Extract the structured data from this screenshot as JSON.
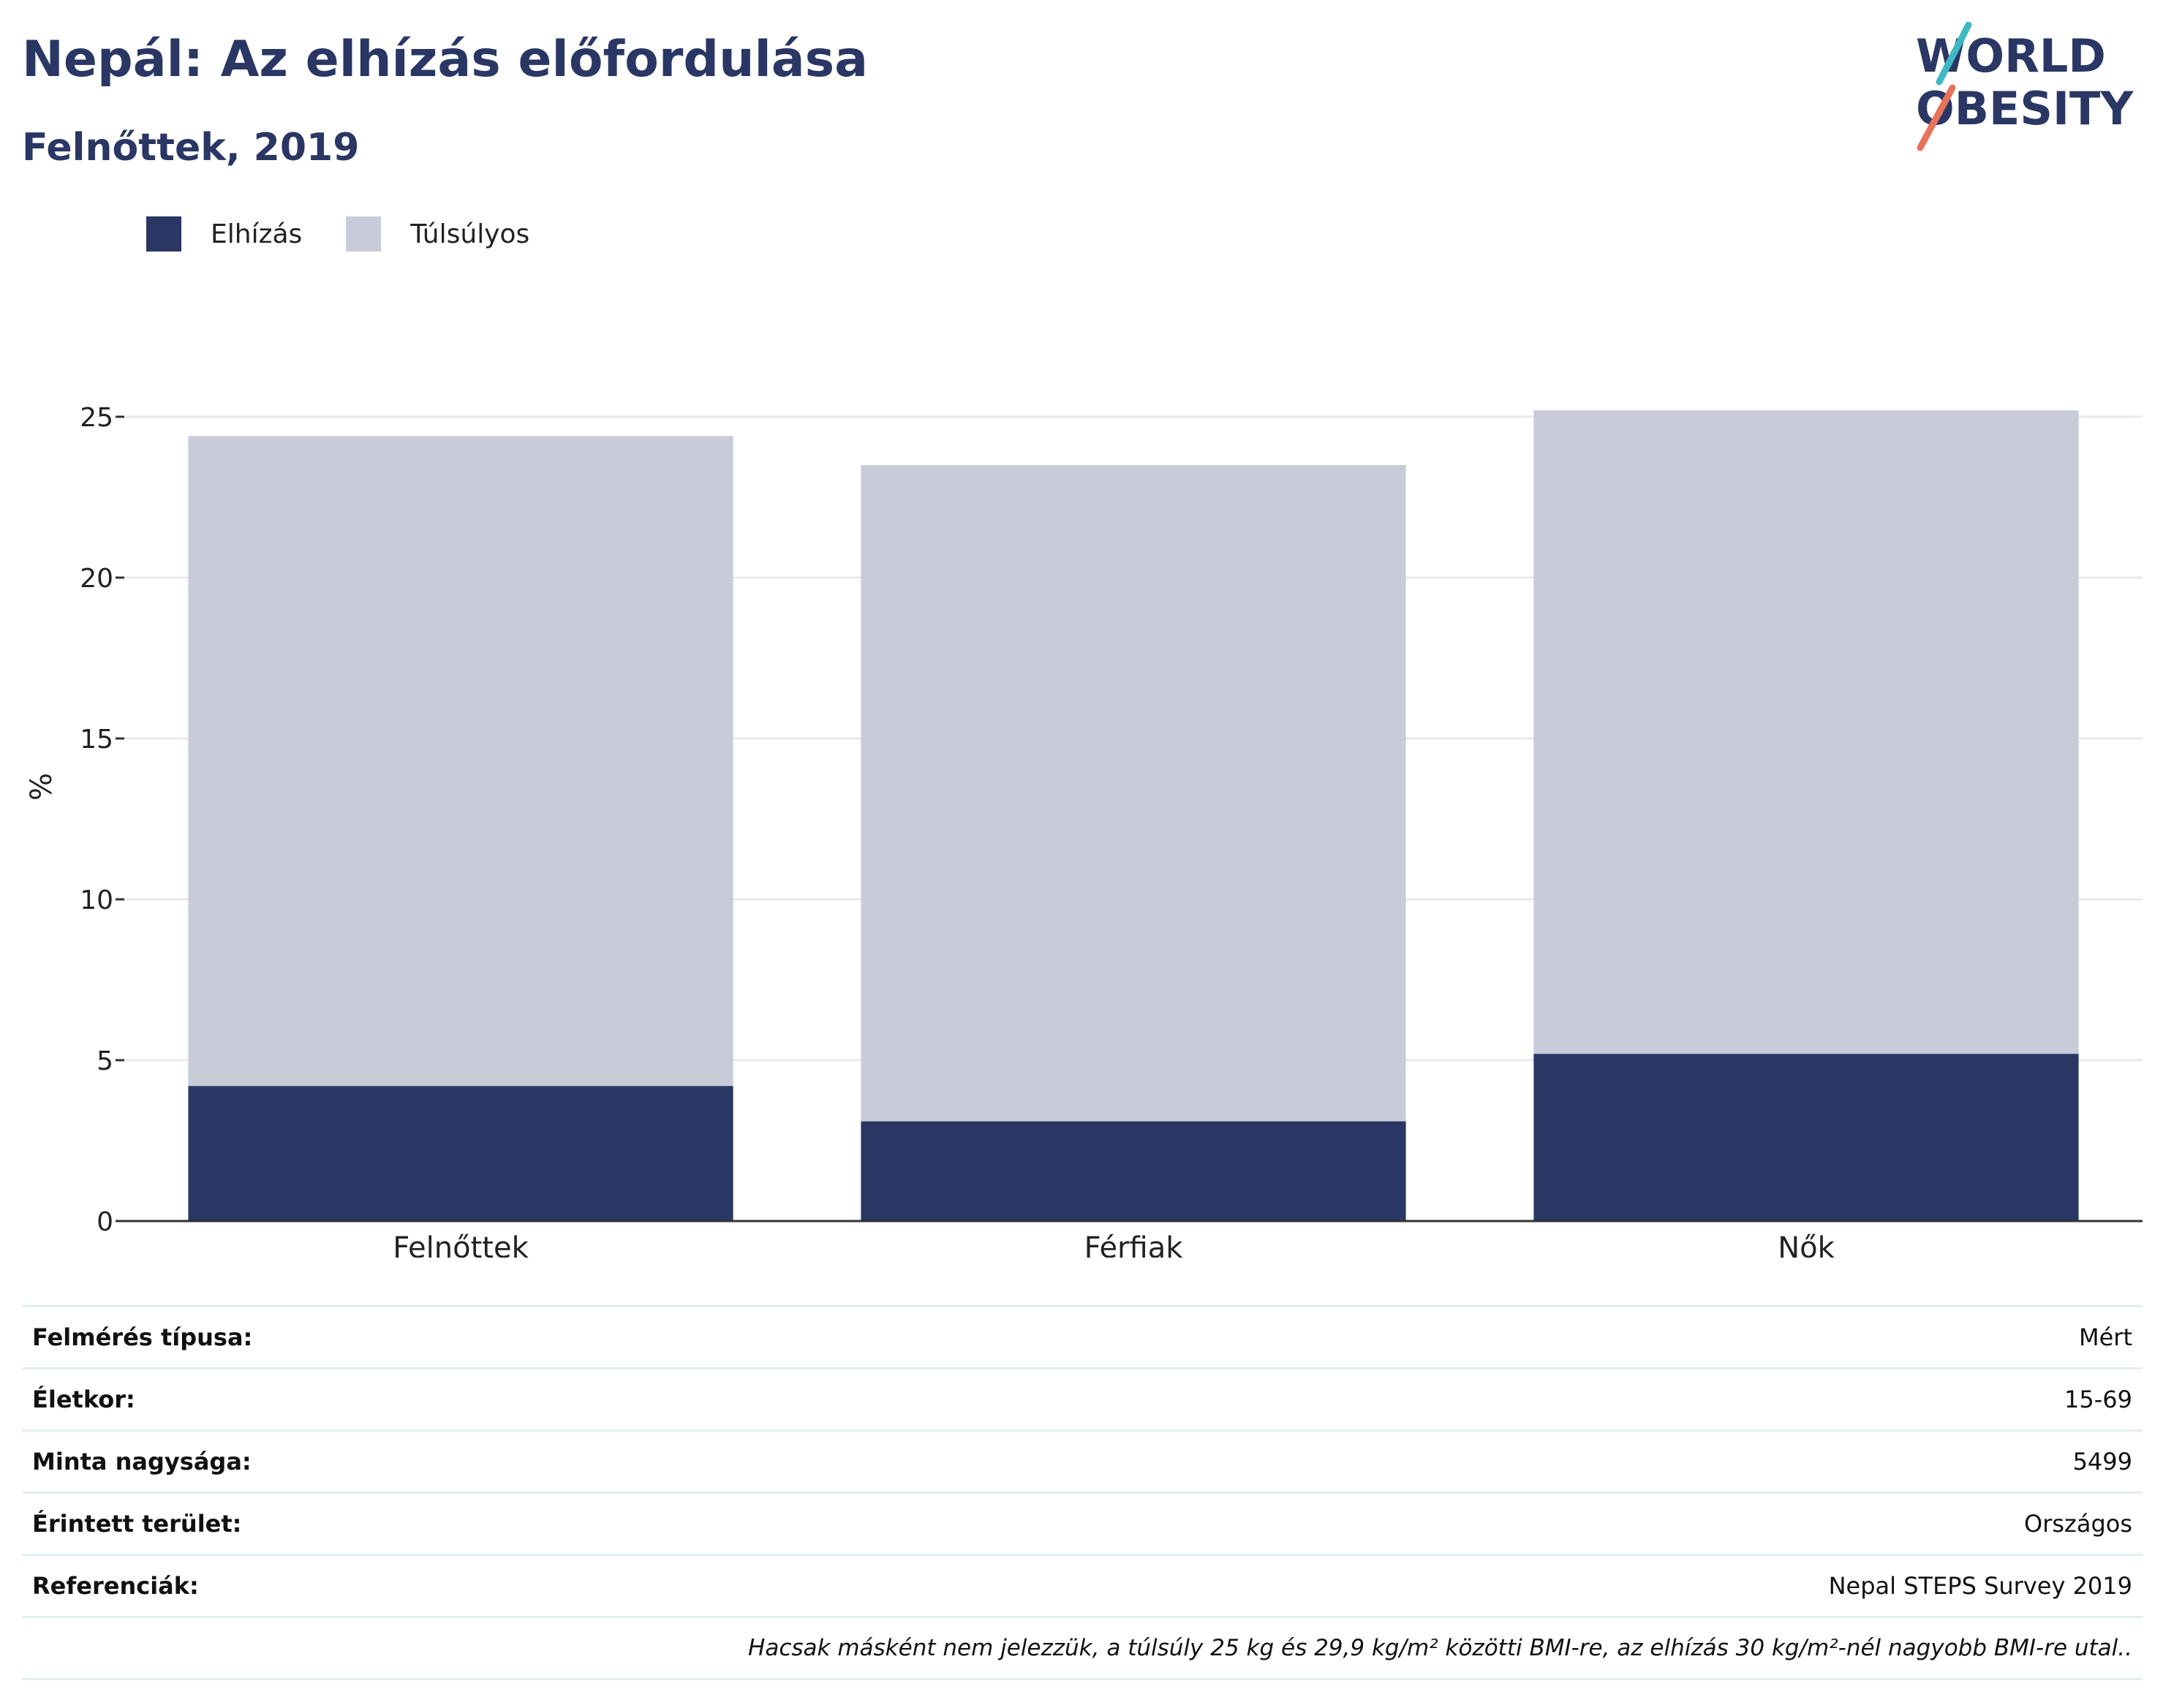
{
  "header": {
    "title": "Nepál: Az elhízás előfordulása",
    "subtitle": "Felnőttek, 2019"
  },
  "logo": {
    "line1": "WORLD",
    "line2": "OBESITY"
  },
  "colors": {
    "obesity": "#2a3764",
    "overweight": "#c9ccd8",
    "grid": "#e6e9ee",
    "axis": "#333333"
  },
  "chart_data": {
    "type": "bar",
    "stacked": true,
    "categories": [
      "Felnőttek",
      "Férfiak",
      "Nők"
    ],
    "series": [
      {
        "name": "Elhízás",
        "values": [
          4.2,
          3.1,
          5.2
        ]
      },
      {
        "name": "Túlsúlyos",
        "values": [
          20.2,
          20.4,
          20.0
        ]
      }
    ],
    "ylabel": "%",
    "ylim": [
      0,
      27
    ],
    "yticks": [
      0,
      5,
      10,
      15,
      20,
      25
    ],
    "grid": true,
    "legend": "top-left"
  },
  "info": {
    "rows": [
      {
        "label": "Felmérés típusa:",
        "value": "Mért"
      },
      {
        "label": "Életkor:",
        "value": "15-69"
      },
      {
        "label": "Minta nagysága:",
        "value": "5499"
      },
      {
        "label": "Érintett terület:",
        "value": "Országos"
      },
      {
        "label": "Referenciák:",
        "value": "Nepal STEPS Survey 2019"
      }
    ],
    "note": "Hacsak másként nem jelezzük, a túlsúly 25 kg és 29,9 kg/m² közötti BMI-re, az elhízás 30 kg/m²-nél nagyobb BMI-re utal.."
  }
}
